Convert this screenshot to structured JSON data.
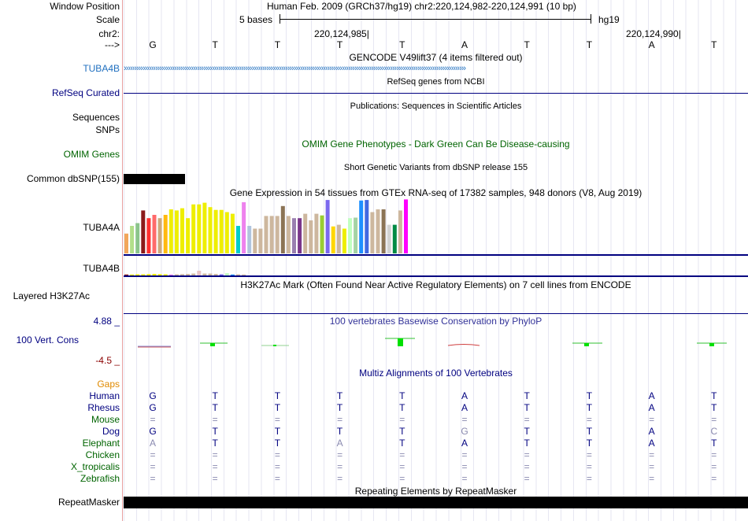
{
  "labels": {
    "window_position": "Window Position",
    "scale": "Scale",
    "chr": "chr2:",
    "strand": "--->",
    "tuba4b_gencode": "TUBA4B",
    "refseq": "RefSeq Curated",
    "sequences": "Sequences",
    "snps": "SNPs",
    "omim": "OMIM Genes",
    "dbsnp": "Common dbSNP(155)",
    "tuba4a": "TUBA4A",
    "tuba4b_gtex": "TUBA4B",
    "h3k27ac": "Layered H3K27Ac",
    "cons": "100 Vert. Cons",
    "cons_max": "4.88 _",
    "cons_min": "-4.5 _",
    "repeatmasker": "RepeatMasker"
  },
  "header": {
    "position_text": "Human Feb. 2009 (GRCh37/hg19)   chr2:220,124,982-220,124,991 (10 bp)",
    "scale_text": "5 bases",
    "scale_assembly": "hg19",
    "coord_1": "220,124,985",
    "coord_2": "220,124,990"
  },
  "bases": [
    "G",
    "T",
    "T",
    "T",
    "T",
    "A",
    "T",
    "T",
    "A",
    "T"
  ],
  "tracks": {
    "gencode": "GENCODE V49lift37 (4 items filtered out)",
    "refseq": "RefSeq genes from NCBI",
    "publications": "Publications: Sequences in Scientific Articles",
    "omim": "OMIM Gene Phenotypes - Dark Green Can Be Disease-causing",
    "dbsnp": "Short Genetic Variants from dbSNP release 155",
    "gtex": "Gene Expression in 54 tissues from GTEx RNA-seq of 17382 samples, 948 donors (V8, Aug 2019)",
    "h3k27ac": "H3K27Ac Mark (Often Found Near Active Regulatory Elements) on 7 cell lines from ENCODE",
    "phylop": "100 vertebrates Basewise Conservation by PhyloP",
    "multiz": "Multiz Alignments of 100 Vertebrates",
    "repeatmasker": "Repeating Elements by RepeatMasker"
  },
  "gtex_tuba4a": [
    {
      "v": 0.36,
      "c": "#f2a65a"
    },
    {
      "v": 0.5,
      "c": "#b2df8a"
    },
    {
      "v": 0.55,
      "c": "#8bc48b"
    },
    {
      "v": 0.78,
      "c": "#8b1a1a"
    },
    {
      "v": 0.64,
      "c": "#ff3030"
    },
    {
      "v": 0.7,
      "c": "#ff6a6a"
    },
    {
      "v": 0.64,
      "c": "#cdaa7d"
    },
    {
      "v": 0.7,
      "c": "#ffb90f"
    },
    {
      "v": 0.8,
      "c": "#eeee00"
    },
    {
      "v": 0.78,
      "c": "#eeee00"
    },
    {
      "v": 0.82,
      "c": "#eeee00"
    },
    {
      "v": 0.64,
      "c": "#eeee00"
    },
    {
      "v": 0.89,
      "c": "#eeee00"
    },
    {
      "v": 0.89,
      "c": "#eeee00"
    },
    {
      "v": 0.92,
      "c": "#eeee00"
    },
    {
      "v": 0.84,
      "c": "#eeee00"
    },
    {
      "v": 0.79,
      "c": "#eeee00"
    },
    {
      "v": 0.79,
      "c": "#eeee00"
    },
    {
      "v": 0.75,
      "c": "#eeee00"
    },
    {
      "v": 0.72,
      "c": "#eeee00"
    },
    {
      "v": 0.5,
      "c": "#00cdcd"
    },
    {
      "v": 0.93,
      "c": "#ee82ee"
    },
    {
      "v": 0.5,
      "c": "#b0c4de"
    },
    {
      "v": 0.45,
      "c": "#cdb79e"
    },
    {
      "v": 0.45,
      "c": "#cdb79e"
    },
    {
      "v": 0.68,
      "c": "#cdb79e"
    },
    {
      "v": 0.68,
      "c": "#cdb79e"
    },
    {
      "v": 0.68,
      "c": "#cdb79e"
    },
    {
      "v": 0.86,
      "c": "#8b7355"
    },
    {
      "v": 0.68,
      "c": "#cdb79e"
    },
    {
      "v": 0.64,
      "c": "#9a7fb0"
    },
    {
      "v": 0.64,
      "c": "#7a378b"
    },
    {
      "v": 0.72,
      "c": "#cdb79e"
    },
    {
      "v": 0.6,
      "c": "#cdb79e"
    },
    {
      "v": 0.72,
      "c": "#cdb79e"
    },
    {
      "v": 0.69,
      "c": "#9acd32"
    },
    {
      "v": 0.97,
      "c": "#7b68ee"
    },
    {
      "v": 0.49,
      "c": "#ffd700"
    },
    {
      "v": 0.52,
      "c": "#cdb79e"
    },
    {
      "v": 0.45,
      "c": "#eeee00"
    },
    {
      "v": 0.64,
      "c": "#c1ffc1"
    },
    {
      "v": 0.65,
      "c": "#a4d3a4"
    },
    {
      "v": 0.96,
      "c": "#1e90ff"
    },
    {
      "v": 0.97,
      "c": "#4169e1"
    },
    {
      "v": 0.75,
      "c": "#cdb79e"
    },
    {
      "v": 0.8,
      "c": "#cdb79e"
    },
    {
      "v": 0.8,
      "c": "#8b7355"
    },
    {
      "v": 0.52,
      "c": "#d3d3d3"
    },
    {
      "v": 0.52,
      "c": "#008b45"
    },
    {
      "v": 0.78,
      "c": "#cdb79e"
    },
    {
      "v": 0.98,
      "c": "#ff00ff"
    }
  ],
  "gtex_tuba4b": [
    {
      "v": 0.05,
      "c": "#8b1a1a"
    },
    {
      "v": 0.05,
      "c": "#eeee00"
    },
    {
      "v": 0.06,
      "c": "#eeee00"
    },
    {
      "v": 0.06,
      "c": "#eeee00"
    },
    {
      "v": 0.07,
      "c": "#eeee00"
    },
    {
      "v": 0.08,
      "c": "#eeee00"
    },
    {
      "v": 0.07,
      "c": "#eeee00"
    },
    {
      "v": 0.06,
      "c": "#eeee00"
    },
    {
      "v": 0.05,
      "c": "#ee82ee"
    },
    {
      "v": 0.06,
      "c": "#cdb79e"
    },
    {
      "v": 0.07,
      "c": "#cdb79e"
    },
    {
      "v": 0.08,
      "c": "#cdb79e"
    },
    {
      "v": 0.1,
      "c": "#cdb79e"
    },
    {
      "v": 0.25,
      "c": "#e8c4c4"
    },
    {
      "v": 0.1,
      "c": "#cdb79e"
    },
    {
      "v": 0.1,
      "c": "#cdb79e"
    },
    {
      "v": 0.08,
      "c": "#cdb79e"
    },
    {
      "v": 0.06,
      "c": "#7b68ee"
    },
    {
      "v": 0.12,
      "c": "#c1ffc1"
    },
    {
      "v": 0.05,
      "c": "#1e90ff"
    },
    {
      "v": 0.06,
      "c": "#cdb79e"
    },
    {
      "v": 0.05,
      "c": "#cdb79e"
    }
  ],
  "species": [
    {
      "name": "Human",
      "color": "#000080",
      "bases": [
        "G",
        "T",
        "T",
        "T",
        "T",
        "A",
        "T",
        "T",
        "A",
        "T"
      ]
    },
    {
      "name": "Rhesus",
      "color": "#000080",
      "bases": [
        "G",
        "T",
        "T",
        "T",
        "T",
        "A",
        "T",
        "T",
        "A",
        "T"
      ]
    },
    {
      "name": "Mouse",
      "color": "#006400",
      "bases": [
        "=",
        "=",
        "=",
        "=",
        "=",
        "=",
        "=",
        "=",
        "=",
        "="
      ]
    },
    {
      "name": "Dog",
      "color": "#000080",
      "bases": [
        "G",
        "T",
        "T",
        "T",
        "T",
        "G",
        "T",
        "T",
        "A",
        "C"
      ]
    },
    {
      "name": "Elephant",
      "color": "#006400",
      "bases": [
        "A",
        "T",
        "T",
        "A",
        "T",
        "A",
        "T",
        "T",
        "A",
        "T"
      ]
    },
    {
      "name": "Chicken",
      "color": "#006400",
      "bases": [
        "=",
        "=",
        "=",
        "=",
        "=",
        "=",
        "=",
        "=",
        "=",
        "="
      ]
    },
    {
      "name": "X_tropicalis",
      "color": "#006400",
      "bases": [
        "=",
        "=",
        "=",
        "=",
        "=",
        "=",
        "=",
        "=",
        "=",
        "="
      ]
    },
    {
      "name": "Zebrafish",
      "color": "#006400",
      "bases": [
        "=",
        "=",
        "=",
        "=",
        "=",
        "=",
        "=",
        "=",
        "=",
        "="
      ]
    }
  ],
  "colors": {
    "navy": "#000080",
    "gencode": "#1f6fbf",
    "omim": "#006400",
    "gaps": "#e08a00",
    "cons_max": "#000080",
    "cons_min": "#8b0000"
  }
}
